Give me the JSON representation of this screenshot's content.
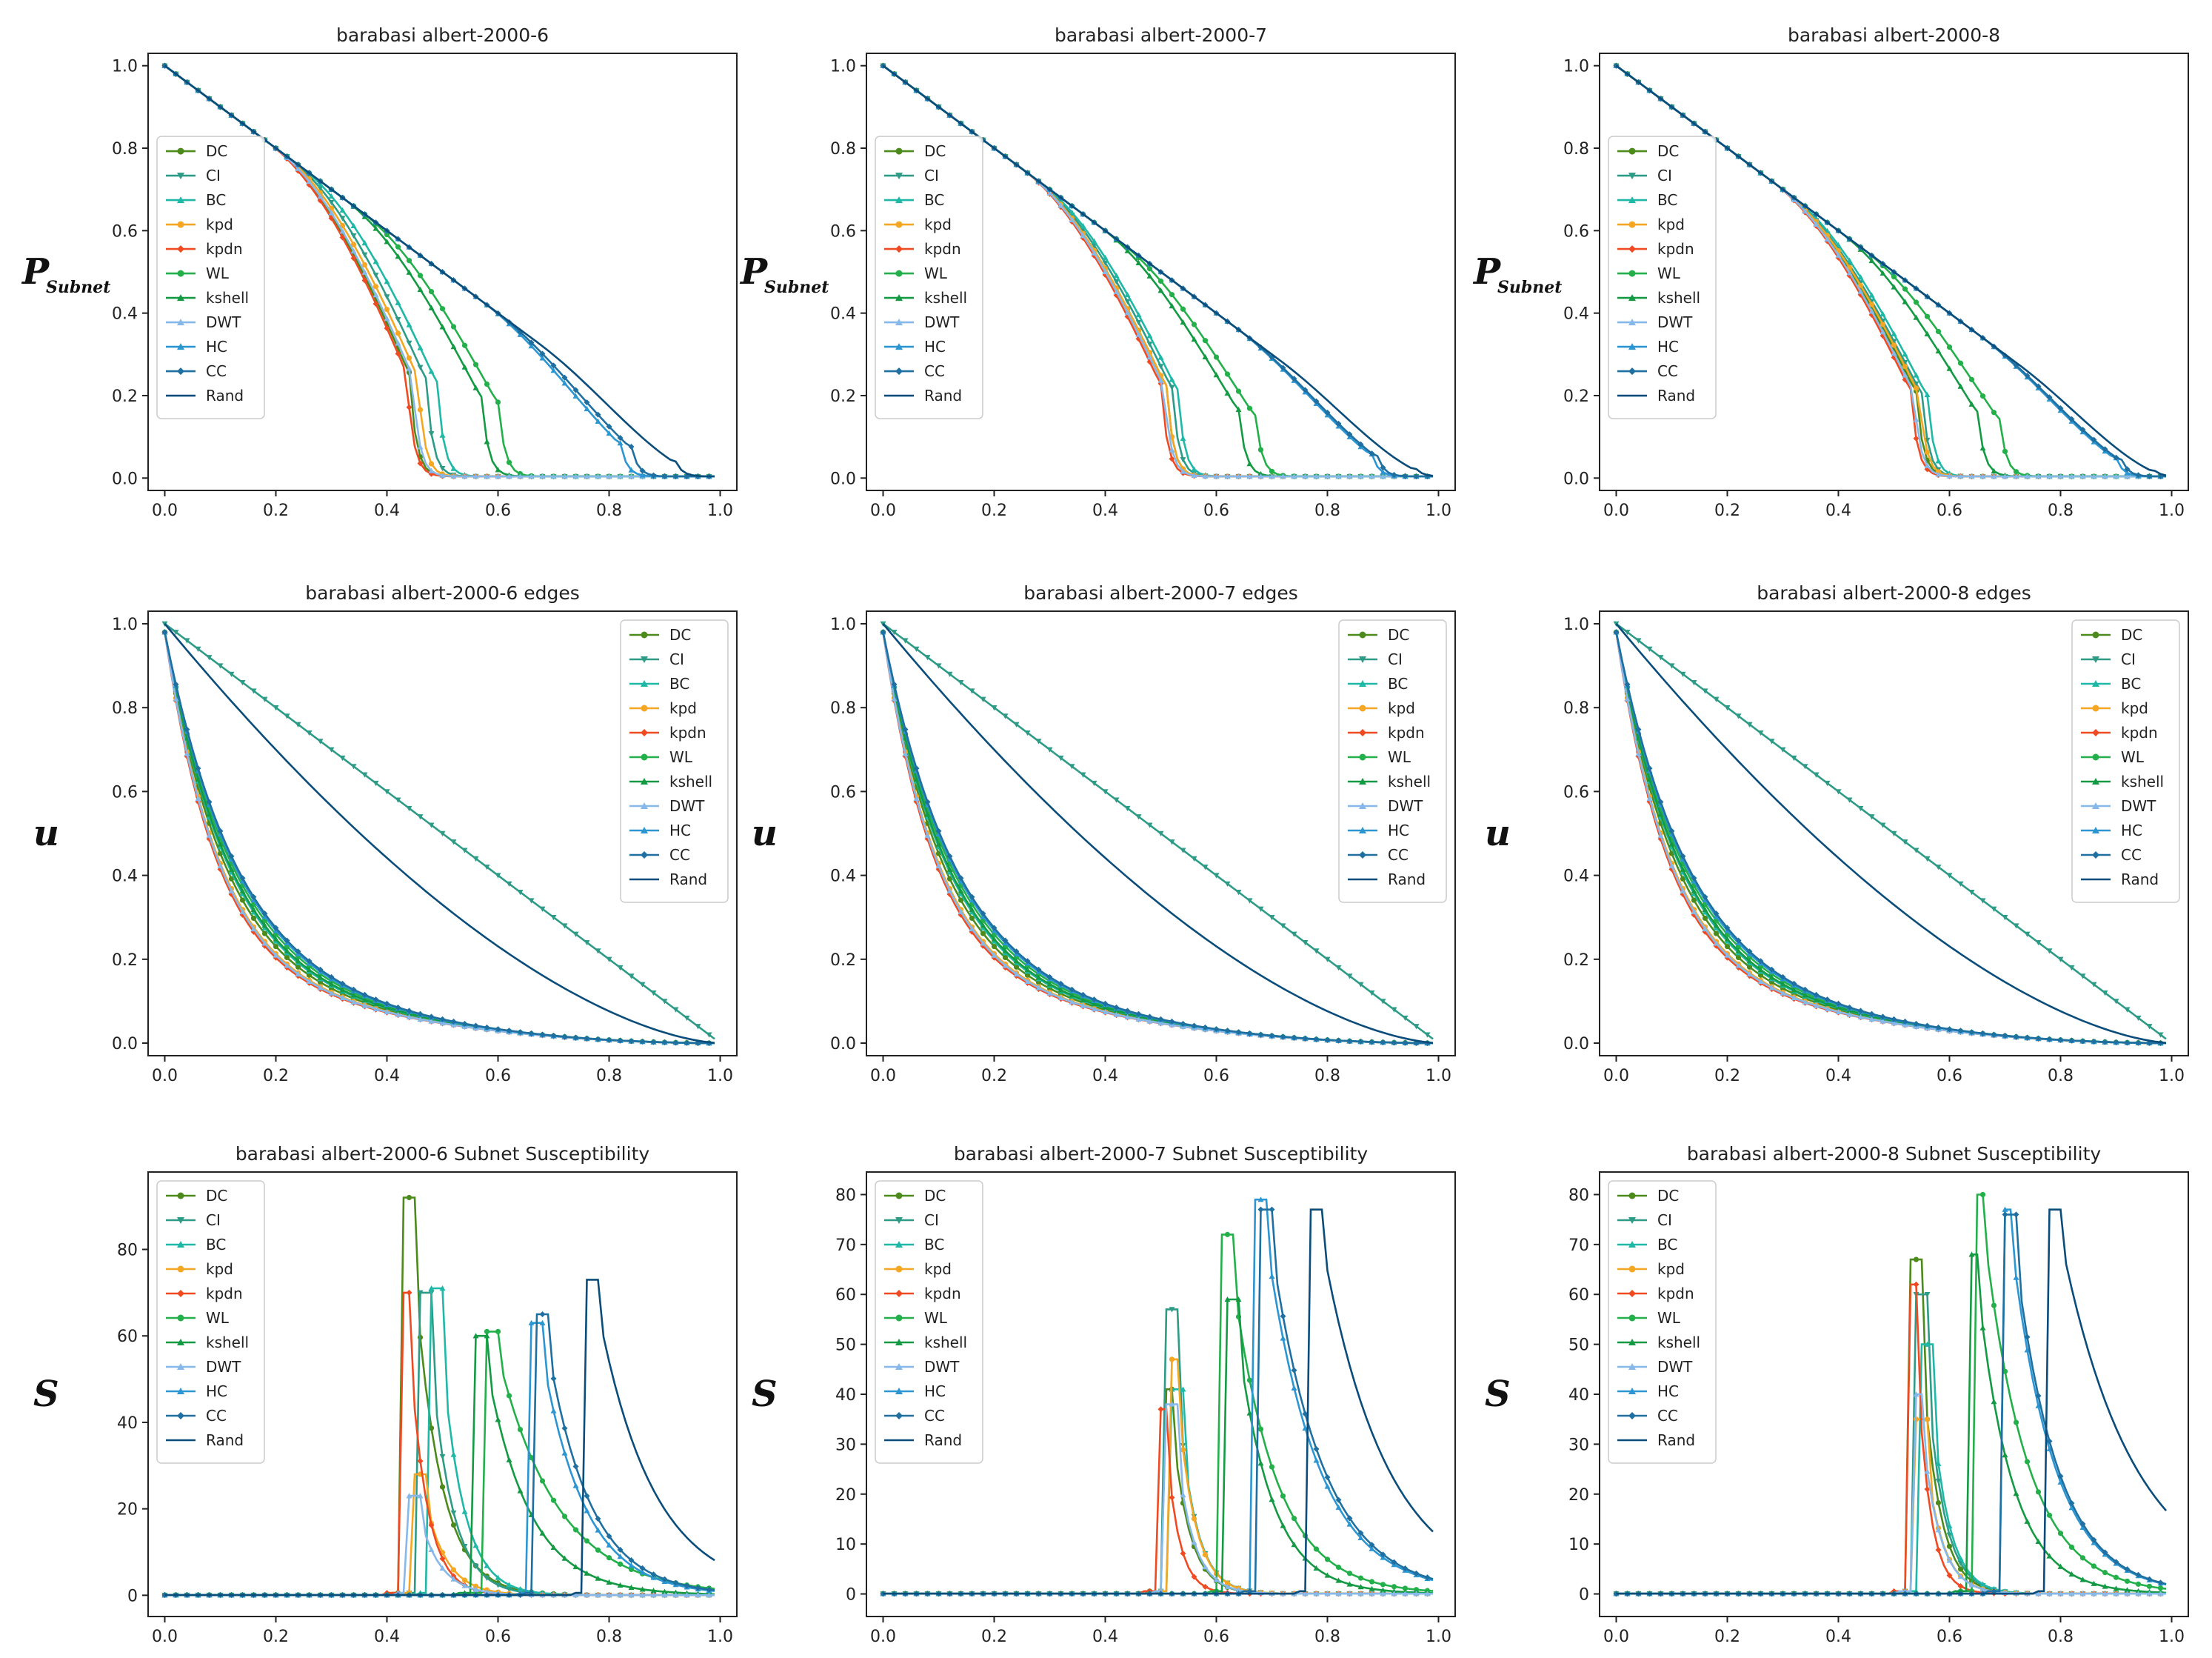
{
  "colors": {
    "DC": "#4d8a1c",
    "CI": "#2e9b86",
    "BC": "#1fb8a6",
    "kpd": "#f5a623",
    "kpdn": "#f04a23",
    "WL": "#23b04a",
    "kshell": "#139a43",
    "DWT": "#86b8ea",
    "HC": "#2b96d2",
    "CC": "#1f6fa0",
    "Rand": "#0b4d7a"
  },
  "chart_data": [
    {
      "type": "line",
      "metric": "P",
      "title": "barabasi albert-2000-6",
      "ylabel": "P",
      "ylabel_sub": "Subnet",
      "xlim": [
        0,
        1
      ],
      "ylim": [
        0,
        1
      ],
      "xticks": [
        "0.0",
        "0.2",
        "0.4",
        "0.6",
        "0.8",
        "1.0"
      ],
      "yticks": [
        "0.0",
        "0.2",
        "0.4",
        "0.6",
        "0.8",
        "1.0"
      ],
      "yticks_values": [
        0,
        0.2,
        0.4,
        0.6,
        0.8,
        1.0
      ],
      "legend_position": "center-left",
      "series": [
        {
          "name": "DC",
          "drop": 0.44
        },
        {
          "name": "CI",
          "drop": 0.47
        },
        {
          "name": "BC",
          "drop": 0.49
        },
        {
          "name": "kpd",
          "drop": 0.455
        },
        {
          "name": "kpdn",
          "drop": 0.435
        },
        {
          "name": "WL",
          "drop": 0.6
        },
        {
          "name": "kshell",
          "drop": 0.57
        },
        {
          "name": "DWT",
          "drop": 0.445
        },
        {
          "name": "HC",
          "drop": 0.82
        },
        {
          "name": "CC",
          "drop": 0.84
        },
        {
          "name": "Rand",
          "drop": 0.92
        }
      ]
    },
    {
      "type": "line",
      "metric": "P",
      "title": "barabasi albert-2000-7",
      "ylabel": "P",
      "ylabel_sub": "Subnet",
      "xlim": [
        0,
        1
      ],
      "ylim": [
        0,
        1
      ],
      "xticks": [
        "0.0",
        "0.2",
        "0.4",
        "0.6",
        "0.8",
        "1.0"
      ],
      "yticks": [
        "0.0",
        "0.2",
        "0.4",
        "0.6",
        "0.8",
        "1.0"
      ],
      "yticks_values": [
        0,
        0.2,
        0.4,
        0.6,
        0.8,
        1.0
      ],
      "legend_position": "center-left",
      "series": [
        {
          "name": "DC",
          "drop": 0.51
        },
        {
          "name": "CI",
          "drop": 0.52
        },
        {
          "name": "BC",
          "drop": 0.53
        },
        {
          "name": "kpd",
          "drop": 0.51
        },
        {
          "name": "kpdn",
          "drop": 0.5
        },
        {
          "name": "WL",
          "drop": 0.67
        },
        {
          "name": "kshell",
          "drop": 0.64
        },
        {
          "name": "DWT",
          "drop": 0.505
        },
        {
          "name": "HC",
          "drop": 0.88
        },
        {
          "name": "CC",
          "drop": 0.89
        },
        {
          "name": "Rand",
          "drop": 0.96
        }
      ]
    },
    {
      "type": "line",
      "metric": "P",
      "title": "barabasi albert-2000-8",
      "ylabel": "P",
      "ylabel_sub": "Subnet",
      "xlim": [
        0,
        1
      ],
      "ylim": [
        0,
        1
      ],
      "xticks": [
        "0.0",
        "0.2",
        "0.4",
        "0.6",
        "0.8",
        "1.0"
      ],
      "yticks": [
        "0.0",
        "0.2",
        "0.4",
        "0.6",
        "0.8",
        "1.0"
      ],
      "yticks_values": [
        0,
        0.2,
        0.4,
        0.6,
        0.8,
        1.0
      ],
      "legend_position": "center-left",
      "series": [
        {
          "name": "DC",
          "drop": 0.54
        },
        {
          "name": "CI",
          "drop": 0.55
        },
        {
          "name": "BC",
          "drop": 0.56
        },
        {
          "name": "kpd",
          "drop": 0.545
        },
        {
          "name": "kpdn",
          "drop": 0.53
        },
        {
          "name": "WL",
          "drop": 0.69
        },
        {
          "name": "kshell",
          "drop": 0.65
        },
        {
          "name": "DWT",
          "drop": 0.535
        },
        {
          "name": "HC",
          "drop": 0.9
        },
        {
          "name": "CC",
          "drop": 0.91
        },
        {
          "name": "Rand",
          "drop": 0.97
        }
      ]
    },
    {
      "type": "line",
      "metric": "u",
      "title": "barabasi albert-2000-6 edges",
      "ylabel": "u",
      "ylabel_sub": "",
      "xlim": [
        0,
        1
      ],
      "ylim": [
        0,
        1
      ],
      "xticks": [
        "0.0",
        "0.2",
        "0.4",
        "0.6",
        "0.8",
        "1.0"
      ],
      "yticks": [
        "0.0",
        "0.2",
        "0.4",
        "0.6",
        "0.8",
        "1.0"
      ],
      "yticks_values": [
        0,
        0.2,
        0.4,
        0.6,
        0.8,
        1.0
      ],
      "legend_position": "upper-right",
      "series": [
        {
          "name": "DC",
          "shape": "convex",
          "k": 8.5
        },
        {
          "name": "CI",
          "shape": "linear"
        },
        {
          "name": "BC",
          "shape": "convex",
          "k": 8.0
        },
        {
          "name": "kpd",
          "shape": "convex",
          "k": 9.3
        },
        {
          "name": "kpdn",
          "shape": "convex",
          "k": 9.8
        },
        {
          "name": "WL",
          "shape": "convex",
          "k": 7.4
        },
        {
          "name": "kshell",
          "shape": "convex",
          "k": 7.8
        },
        {
          "name": "DWT",
          "shape": "convex",
          "k": 9.5
        },
        {
          "name": "HC",
          "shape": "convex",
          "k": 7.1
        },
        {
          "name": "CC",
          "shape": "convex",
          "k": 6.9
        },
        {
          "name": "Rand",
          "shape": "rand"
        }
      ]
    },
    {
      "type": "line",
      "metric": "u",
      "title": "barabasi albert-2000-7 edges",
      "ylabel": "u",
      "ylabel_sub": "",
      "xlim": [
        0,
        1
      ],
      "ylim": [
        0,
        1
      ],
      "xticks": [
        "0.0",
        "0.2",
        "0.4",
        "0.6",
        "0.8",
        "1.0"
      ],
      "yticks": [
        "0.0",
        "0.2",
        "0.4",
        "0.6",
        "0.8",
        "1.0"
      ],
      "yticks_values": [
        0,
        0.2,
        0.4,
        0.6,
        0.8,
        1.0
      ],
      "legend_position": "upper-right",
      "series": [
        {
          "name": "DC",
          "shape": "convex",
          "k": 8.5
        },
        {
          "name": "CI",
          "shape": "linear"
        },
        {
          "name": "BC",
          "shape": "convex",
          "k": 8.0
        },
        {
          "name": "kpd",
          "shape": "convex",
          "k": 9.3
        },
        {
          "name": "kpdn",
          "shape": "convex",
          "k": 9.8
        },
        {
          "name": "WL",
          "shape": "convex",
          "k": 7.4
        },
        {
          "name": "kshell",
          "shape": "convex",
          "k": 7.8
        },
        {
          "name": "DWT",
          "shape": "convex",
          "k": 9.5
        },
        {
          "name": "HC",
          "shape": "convex",
          "k": 7.1
        },
        {
          "name": "CC",
          "shape": "convex",
          "k": 6.9
        },
        {
          "name": "Rand",
          "shape": "rand"
        }
      ]
    },
    {
      "type": "line",
      "metric": "u",
      "title": "barabasi albert-2000-8 edges",
      "ylabel": "u",
      "ylabel_sub": "",
      "xlim": [
        0,
        1
      ],
      "ylim": [
        0,
        1
      ],
      "xticks": [
        "0.0",
        "0.2",
        "0.4",
        "0.6",
        "0.8",
        "1.0"
      ],
      "yticks": [
        "0.0",
        "0.2",
        "0.4",
        "0.6",
        "0.8",
        "1.0"
      ],
      "yticks_values": [
        0,
        0.2,
        0.4,
        0.6,
        0.8,
        1.0
      ],
      "legend_position": "upper-right",
      "series": [
        {
          "name": "DC",
          "shape": "convex",
          "k": 8.5
        },
        {
          "name": "CI",
          "shape": "linear"
        },
        {
          "name": "BC",
          "shape": "convex",
          "k": 8.0
        },
        {
          "name": "kpd",
          "shape": "convex",
          "k": 9.3
        },
        {
          "name": "kpdn",
          "shape": "convex",
          "k": 9.8
        },
        {
          "name": "WL",
          "shape": "convex",
          "k": 7.4
        },
        {
          "name": "kshell",
          "shape": "convex",
          "k": 7.8
        },
        {
          "name": "DWT",
          "shape": "convex",
          "k": 9.5
        },
        {
          "name": "HC",
          "shape": "convex",
          "k": 7.1
        },
        {
          "name": "CC",
          "shape": "convex",
          "k": 6.9
        },
        {
          "name": "Rand",
          "shape": "rand"
        }
      ]
    },
    {
      "type": "line",
      "metric": "S",
      "title": "barabasi albert-2000-6 Subnet Susceptibility",
      "ylabel": "S",
      "ylabel_sub": "",
      "xlim": [
        0,
        1
      ],
      "ylim": [
        -2,
        95
      ],
      "xticks": [
        "0.0",
        "0.2",
        "0.4",
        "0.6",
        "0.8",
        "1.0"
      ],
      "yticks": [
        "0",
        "20",
        "40",
        "60",
        "80"
      ],
      "yticks_values": [
        0,
        20,
        40,
        60,
        80
      ],
      "legend_position": "upper-left",
      "series": [
        {
          "name": "DC",
          "peak_x": 0.44,
          "peak": 92,
          "decay": 0.06
        },
        {
          "name": "CI",
          "peak_x": 0.47,
          "peak": 70,
          "decay": 0.05
        },
        {
          "name": "BC",
          "peak_x": 0.49,
          "peak": 71,
          "decay": 0.05
        },
        {
          "name": "kpd",
          "peak_x": 0.46,
          "peak": 28,
          "decay": 0.05
        },
        {
          "name": "kpdn",
          "peak_x": 0.435,
          "peak": 70,
          "decay": 0.04
        },
        {
          "name": "WL",
          "peak_x": 0.59,
          "peak": 61,
          "decay": 0.14
        },
        {
          "name": "kshell",
          "peak_x": 0.57,
          "peak": 60,
          "decay": 0.1
        },
        {
          "name": "DWT",
          "peak_x": 0.45,
          "peak": 23,
          "decay": 0.05
        },
        {
          "name": "HC",
          "peak_x": 0.67,
          "peak": 63,
          "decay": 0.1
        },
        {
          "name": "CC",
          "peak_x": 0.68,
          "peak": 65,
          "decay": 0.1
        },
        {
          "name": "Rand",
          "peak_x": 0.77,
          "peak": 73,
          "decay": 0.13
        }
      ]
    },
    {
      "type": "line",
      "metric": "S",
      "title": "barabasi albert-2000-7 Subnet Susceptibility",
      "ylabel": "S",
      "ylabel_sub": "",
      "xlim": [
        0,
        1
      ],
      "ylim": [
        -2,
        82
      ],
      "xticks": [
        "0.0",
        "0.2",
        "0.4",
        "0.6",
        "0.8",
        "1.0"
      ],
      "yticks": [
        "0",
        "10",
        "20",
        "30",
        "40",
        "50",
        "60",
        "70",
        "80"
      ],
      "yticks_values": [
        0,
        10,
        20,
        30,
        40,
        50,
        60,
        70,
        80
      ],
      "legend_position": "upper-left",
      "series": [
        {
          "name": "DC",
          "peak_x": 0.515,
          "peak": 41,
          "decay": 0.04
        },
        {
          "name": "CI",
          "peak_x": 0.52,
          "peak": 57,
          "decay": 0.04
        },
        {
          "name": "BC",
          "peak_x": 0.53,
          "peak": 41,
          "decay": 0.04
        },
        {
          "name": "kpd",
          "peak_x": 0.525,
          "peak": 47,
          "decay": 0.04
        },
        {
          "name": "kpdn",
          "peak_x": 0.505,
          "peak": 37,
          "decay": 0.03
        },
        {
          "name": "WL",
          "peak_x": 0.62,
          "peak": 72,
          "decay": 0.1
        },
        {
          "name": "kshell",
          "peak_x": 0.63,
          "peak": 59,
          "decay": 0.08
        },
        {
          "name": "DWT",
          "peak_x": 0.52,
          "peak": 38,
          "decay": 0.04
        },
        {
          "name": "HC",
          "peak_x": 0.68,
          "peak": 79,
          "decay": 0.12
        },
        {
          "name": "CC",
          "peak_x": 0.69,
          "peak": 77,
          "decay": 0.12
        },
        {
          "name": "Rand",
          "peak_x": 0.78,
          "peak": 77,
          "decay": 0.15
        }
      ]
    },
    {
      "type": "line",
      "metric": "S",
      "title": "barabasi albert-2000-8 Subnet Susceptibility",
      "ylabel": "S",
      "ylabel_sub": "",
      "xlim": [
        0,
        1
      ],
      "ylim": [
        -2,
        82
      ],
      "xticks": [
        "0.0",
        "0.2",
        "0.4",
        "0.6",
        "0.8",
        "1.0"
      ],
      "yticks": [
        "0",
        "10",
        "20",
        "30",
        "40",
        "50",
        "60",
        "70",
        "80"
      ],
      "yticks_values": [
        0,
        10,
        20,
        30,
        40,
        50,
        60,
        70,
        80
      ],
      "legend_position": "upper-left",
      "series": [
        {
          "name": "DC",
          "peak_x": 0.54,
          "peak": 67,
          "decay": 0.04
        },
        {
          "name": "CI",
          "peak_x": 0.55,
          "peak": 60,
          "decay": 0.04
        },
        {
          "name": "BC",
          "peak_x": 0.56,
          "peak": 50,
          "decay": 0.04
        },
        {
          "name": "kpd",
          "peak_x": 0.55,
          "peak": 35,
          "decay": 0.04
        },
        {
          "name": "kpdn",
          "peak_x": 0.535,
          "peak": 62,
          "decay": 0.03
        },
        {
          "name": "WL",
          "peak_x": 0.655,
          "peak": 80,
          "decay": 0.1
        },
        {
          "name": "kshell",
          "peak_x": 0.645,
          "peak": 68,
          "decay": 0.08
        },
        {
          "name": "DWT",
          "peak_x": 0.545,
          "peak": 40,
          "decay": 0.04
        },
        {
          "name": "HC",
          "peak_x": 0.705,
          "peak": 77,
          "decay": 0.1
        },
        {
          "name": "CC",
          "peak_x": 0.71,
          "peak": 76,
          "decay": 0.1
        },
        {
          "name": "Rand",
          "peak_x": 0.79,
          "peak": 77,
          "decay": 0.17
        }
      ]
    }
  ]
}
